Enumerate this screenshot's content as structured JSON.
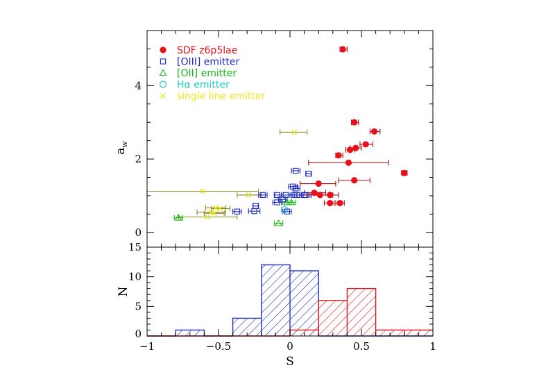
{
  "chart_data": [
    {
      "type": "scatter",
      "ylabel_main": "a",
      "ylabel_sub": "w",
      "xlim": [
        -1,
        1
      ],
      "ylim": [
        -0.4,
        5.5
      ],
      "yticks": [
        "0",
        "2",
        "4"
      ],
      "ytick_values": [
        0,
        2,
        4
      ],
      "legend_placement": "top-left",
      "series": [
        {
          "name": "SDF z6p5lae",
          "marker": "filled-circle",
          "color": "#e8101a",
          "errcolor": "#a81010",
          "points": [
            {
              "x": 0.37,
              "y": 4.99,
              "xlo": 0.35,
              "xhi": 0.4
            },
            {
              "x": 0.45,
              "y": 3.0,
              "xlo": 0.43,
              "xhi": 0.48
            },
            {
              "x": 0.59,
              "y": 2.75,
              "xlo": 0.56,
              "xhi": 0.63
            },
            {
              "x": 0.53,
              "y": 2.4,
              "xlo": 0.49,
              "xhi": 0.58
            },
            {
              "x": 0.46,
              "y": 2.3,
              "xlo": 0.42,
              "xhi": 0.5
            },
            {
              "x": 0.42,
              "y": 2.25,
              "xlo": 0.39,
              "xhi": 0.45
            },
            {
              "x": 0.34,
              "y": 2.1,
              "xlo": 0.32,
              "xhi": 0.37
            },
            {
              "x": 0.41,
              "y": 1.9,
              "xlo": 0.13,
              "xhi": 0.69
            },
            {
              "x": 0.8,
              "y": 1.62,
              "xlo": 0.78,
              "xhi": 0.82
            },
            {
              "x": 0.45,
              "y": 1.42,
              "xlo": 0.34,
              "xhi": 0.56
            },
            {
              "x": 0.2,
              "y": 1.33,
              "xlo": 0.07,
              "xhi": 0.32
            },
            {
              "x": 0.17,
              "y": 1.08,
              "xlo": 0.1,
              "xhi": 0.25
            },
            {
              "x": 0.21,
              "y": 1.02,
              "xlo": 0.12,
              "xhi": 0.3
            },
            {
              "x": 0.28,
              "y": 1.02,
              "xlo": 0.22,
              "xhi": 0.34
            },
            {
              "x": 0.28,
              "y": 0.8,
              "xlo": 0.24,
              "xhi": 0.31
            },
            {
              "x": 0.35,
              "y": 0.8,
              "xlo": 0.32,
              "xhi": 0.38
            }
          ]
        },
        {
          "name": "[OIII] emitter",
          "marker": "open-square",
          "color": "#1e2cc8",
          "errcolor": "#1e2cc8",
          "points": [
            {
              "x": 0.04,
              "y": 1.68,
              "xlo": 0.01,
              "xhi": 0.07
            },
            {
              "x": 0.13,
              "y": 1.6,
              "xlo": 0.11,
              "xhi": 0.15
            },
            {
              "x": 0.02,
              "y": 1.25,
              "xlo": -0.01,
              "xhi": 0.05
            },
            {
              "x": 0.04,
              "y": 1.2,
              "xlo": 0.02,
              "xhi": 0.07
            },
            {
              "x": -0.19,
              "y": 1.02,
              "xlo": -0.22,
              "xhi": -0.16
            },
            {
              "x": -0.09,
              "y": 1.02,
              "xlo": -0.11,
              "xhi": -0.06
            },
            {
              "x": -0.03,
              "y": 1.02,
              "xlo": -0.06,
              "xhi": 0.0
            },
            {
              "x": 0.03,
              "y": 1.02,
              "xlo": 0.0,
              "xhi": 0.05
            },
            {
              "x": 0.05,
              "y": 1.02,
              "xlo": 0.02,
              "xhi": 0.08
            },
            {
              "x": 0.1,
              "y": 1.02,
              "xlo": 0.07,
              "xhi": 0.14
            },
            {
              "x": 0.11,
              "y": 1.02,
              "xlo": 0.08,
              "xhi": 0.15
            },
            {
              "x": -0.05,
              "y": 0.9,
              "xlo": -0.08,
              "xhi": -0.02
            },
            {
              "x": -0.09,
              "y": 0.82,
              "xlo": -0.12,
              "xhi": -0.06
            },
            {
              "x": -0.24,
              "y": 0.72,
              "xlo": -0.26,
              "xhi": -0.22
            },
            {
              "x": -0.25,
              "y": 0.58,
              "xlo": -0.29,
              "xhi": -0.21
            },
            {
              "x": -0.37,
              "y": 0.57,
              "xlo": -0.4,
              "xhi": -0.34
            },
            {
              "x": -0.02,
              "y": 0.57,
              "xlo": -0.05,
              "xhi": 0.01
            }
          ]
        },
        {
          "name": "[OII] emitter",
          "marker": "open-triangle",
          "color": "#18b818",
          "errcolor": "#18b818",
          "points": [
            {
              "x": -0.78,
              "y": 0.4,
              "xlo": -0.81,
              "xhi": -0.75
            },
            {
              "x": -0.08,
              "y": 0.25,
              "xlo": -0.11,
              "xhi": -0.05
            },
            {
              "x": -0.02,
              "y": 0.82,
              "xlo": -0.05,
              "xhi": 0.01
            },
            {
              "x": 0.01,
              "y": 0.82,
              "xlo": -0.02,
              "xhi": 0.04
            }
          ]
        },
        {
          "name": "Hα emitter",
          "marker": "open-circle",
          "color": "#20c8c8",
          "errcolor": "#20c8c8",
          "points": [
            {
              "x": -0.04,
              "y": 0.62,
              "xlo": -0.06,
              "xhi": -0.02
            }
          ]
        },
        {
          "name": "single line emitter",
          "marker": "cross",
          "color": "#e8e820",
          "errcolor": "#8a8a2a",
          "points": [
            {
              "x": 0.03,
              "y": 2.73,
              "xlo": -0.07,
              "xhi": 0.12
            },
            {
              "x": -0.61,
              "y": 1.12,
              "xlo": -1.0,
              "xhi": -0.22
            },
            {
              "x": -0.29,
              "y": 1.02,
              "xlo": -0.37,
              "xhi": -0.2
            },
            {
              "x": -0.52,
              "y": 0.67,
              "xlo": -0.59,
              "xhi": -0.45
            },
            {
              "x": -0.49,
              "y": 0.65,
              "xlo": -0.55,
              "xhi": -0.42
            },
            {
              "x": -0.55,
              "y": 0.55,
              "xlo": -0.65,
              "xhi": -0.45
            },
            {
              "x": -0.53,
              "y": 0.52,
              "xlo": -0.6,
              "xhi": -0.46
            },
            {
              "x": -0.58,
              "y": 0.42,
              "xlo": -0.78,
              "xhi": -0.37
            }
          ]
        }
      ]
    },
    {
      "type": "bar",
      "subtype": "histogram",
      "xlabel": "S",
      "ylabel": "N",
      "xlim": [
        -1,
        1
      ],
      "ylim": [
        0,
        15
      ],
      "xticks": [
        "−1",
        "−0.5",
        "0",
        "0.5",
        "1"
      ],
      "xtick_values": [
        -1,
        -0.5,
        0,
        0.5,
        1
      ],
      "yticks": [
        "0",
        "5",
        "10",
        "15"
      ],
      "ytick_values": [
        0,
        5,
        10,
        15
      ],
      "bin_edges": [
        -1.0,
        -0.8,
        -0.6,
        -0.4,
        -0.2,
        0.0,
        0.2,
        0.4,
        0.6,
        0.8,
        1.0
      ],
      "series": [
        {
          "color": "#1e2cc8",
          "hatch": "diagonal",
          "values": [
            0,
            1,
            0,
            3,
            12,
            11,
            0,
            0,
            0,
            0
          ]
        },
        {
          "color": "#e8101a",
          "hatch": "diagonal",
          "values": [
            0,
            0,
            0,
            0,
            0,
            1,
            6,
            8,
            1,
            1
          ]
        }
      ]
    }
  ]
}
